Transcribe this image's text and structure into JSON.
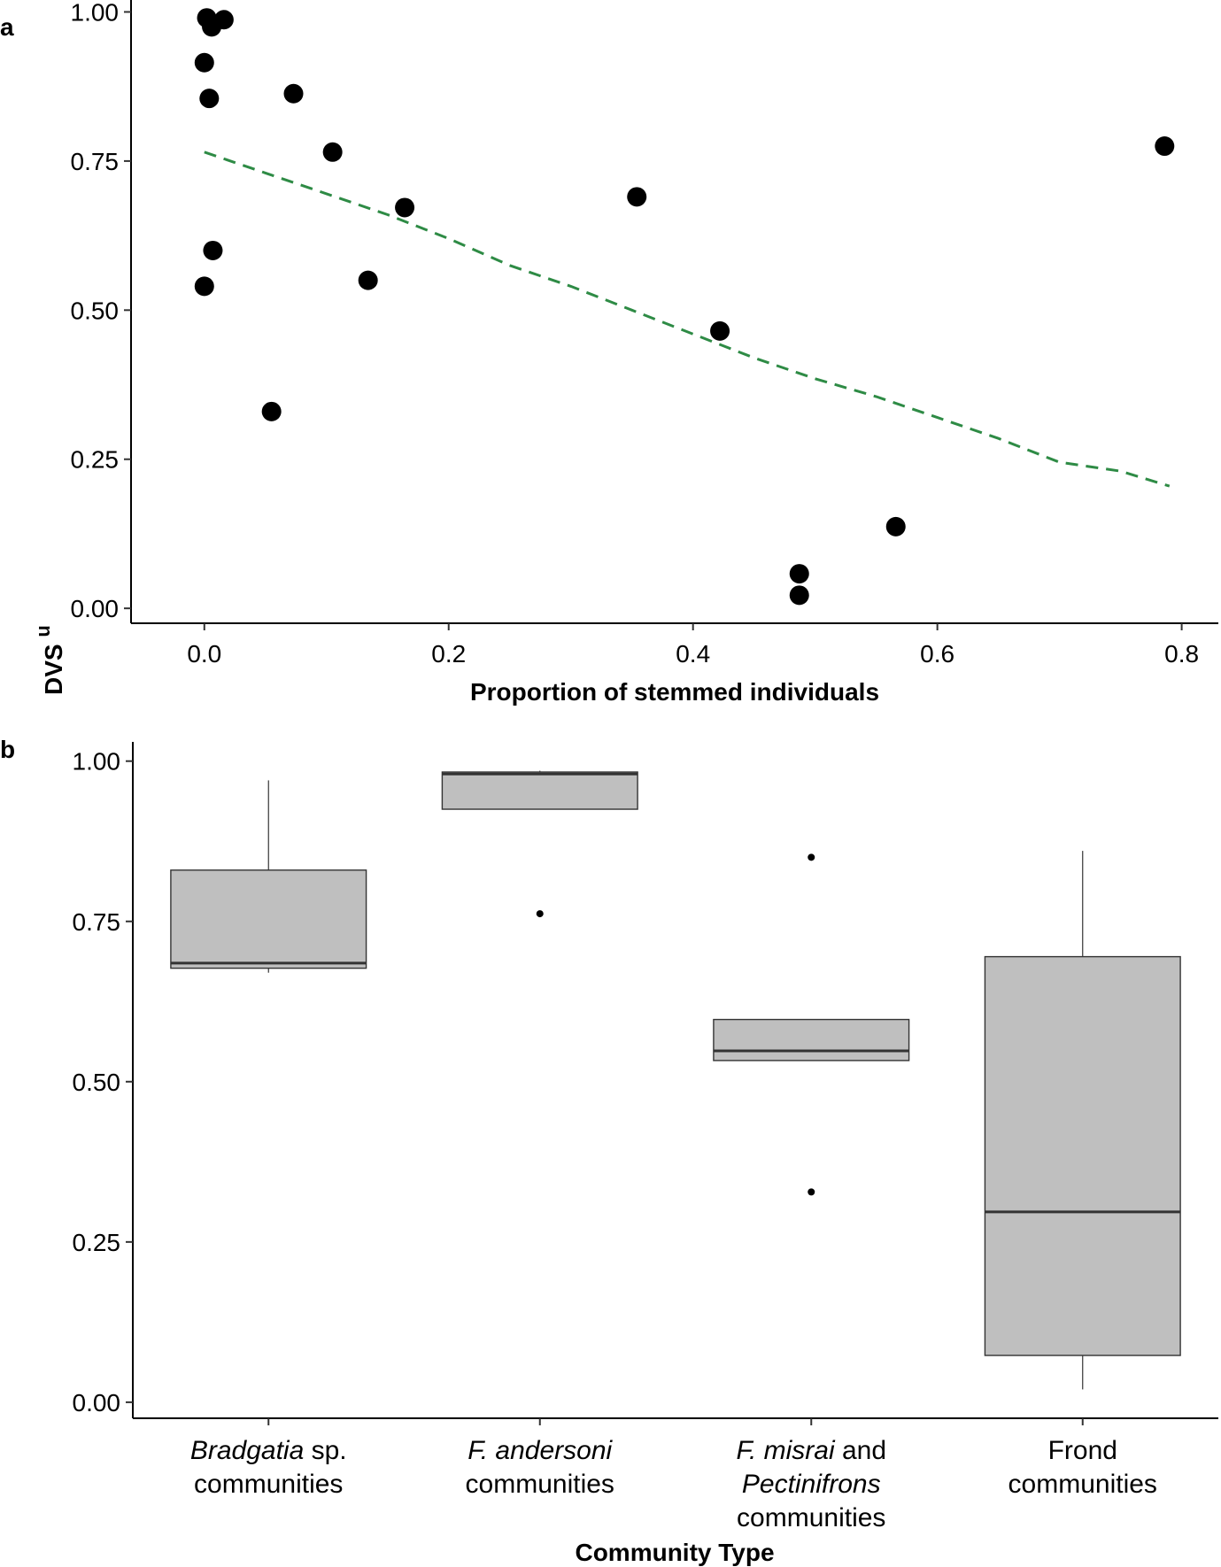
{
  "chart_data": [
    {
      "panel": "a",
      "type": "scatter",
      "ylabel": "DVS",
      "ylabel_superscript": "u",
      "xlabel": "Proportion of stemmed individuals",
      "xlim": [
        -0.06,
        0.83
      ],
      "ylim": [
        -0.025,
        1.02
      ],
      "xticks": [
        0.0,
        0.2,
        0.4,
        0.6,
        0.8
      ],
      "xtick_labels": [
        "0.0",
        "0.2",
        "0.4",
        "0.6",
        "0.8"
      ],
      "yticks": [
        0.0,
        0.25,
        0.5,
        0.75,
        1.0
      ],
      "ytick_labels": [
        "0.00",
        "0.25",
        "0.50",
        "0.75",
        "1.00"
      ],
      "grid": false,
      "point_color": "#000000",
      "points": [
        {
          "x": 0.002,
          "y": 0.99
        },
        {
          "x": 0.006,
          "y": 0.975
        },
        {
          "x": 0.016,
          "y": 0.987
        },
        {
          "x": 0.0,
          "y": 0.915
        },
        {
          "x": 0.004,
          "y": 0.855
        },
        {
          "x": 0.073,
          "y": 0.863
        },
        {
          "x": 0.105,
          "y": 0.765
        },
        {
          "x": 0.164,
          "y": 0.672
        },
        {
          "x": 0.007,
          "y": 0.6
        },
        {
          "x": 0.0,
          "y": 0.54
        },
        {
          "x": 0.134,
          "y": 0.55
        },
        {
          "x": 0.055,
          "y": 0.33
        },
        {
          "x": 0.354,
          "y": 0.69
        },
        {
          "x": 0.422,
          "y": 0.465
        },
        {
          "x": 0.487,
          "y": 0.058
        },
        {
          "x": 0.487,
          "y": 0.022
        },
        {
          "x": 0.566,
          "y": 0.137
        },
        {
          "x": 0.786,
          "y": 0.775
        }
      ],
      "trend": {
        "style": "dashed",
        "color": "#2e8b45",
        "x": [
          0.0,
          0.05,
          0.1,
          0.15,
          0.2,
          0.25,
          0.3,
          0.35,
          0.4,
          0.45,
          0.5,
          0.55,
          0.6,
          0.65,
          0.7,
          0.75,
          0.79
        ],
        "y": [
          0.765,
          0.73,
          0.695,
          0.66,
          0.62,
          0.575,
          0.54,
          0.5,
          0.46,
          0.42,
          0.385,
          0.355,
          0.32,
          0.285,
          0.245,
          0.23,
          0.205
        ]
      }
    },
    {
      "panel": "b",
      "type": "box",
      "xlabel": "Community Type",
      "ylim": [
        -0.025,
        1.03
      ],
      "yticks": [
        0.0,
        0.25,
        0.5,
        0.75,
        1.0
      ],
      "ytick_labels": [
        "0.00",
        "0.25",
        "0.50",
        "0.75",
        "1.00"
      ],
      "grid": false,
      "box_fill": "#bfbfbf",
      "categories": [
        {
          "lines": [
            [
              {
                "t": "Bradgatia",
                "i": true
              },
              {
                "t": " sp.",
                "i": false
              }
            ],
            [
              {
                "t": "communities",
                "i": false
              }
            ]
          ],
          "whisker_low": 0.67,
          "q1": 0.677,
          "median": 0.685,
          "q3": 0.83,
          "whisker_high": 0.97,
          "outliers": []
        },
        {
          "lines": [
            [
              {
                "t": "F. andersoni",
                "i": true
              }
            ],
            [
              {
                "t": "communities",
                "i": false
              }
            ]
          ],
          "whisker_low": 0.925,
          "q1": 0.925,
          "median": 0.98,
          "q3": 0.983,
          "whisker_high": 0.985,
          "outliers": [
            0.762
          ]
        },
        {
          "lines": [
            [
              {
                "t": "F. misrai",
                "i": true
              },
              {
                "t": " and",
                "i": false
              }
            ],
            [
              {
                "t": "Pectinifrons",
                "i": true
              }
            ],
            [
              {
                "t": "communities",
                "i": false
              }
            ]
          ],
          "whisker_low": 0.533,
          "q1": 0.533,
          "median": 0.548,
          "q3": 0.597,
          "whisker_high": 0.597,
          "outliers": [
            0.85,
            0.328
          ]
        },
        {
          "lines": [
            [
              {
                "t": "Frond",
                "i": false
              }
            ],
            [
              {
                "t": "communities",
                "i": false
              }
            ]
          ],
          "whisker_low": 0.02,
          "q1": 0.073,
          "median": 0.297,
          "q3": 0.695,
          "whisker_high": 0.86,
          "outliers": []
        }
      ]
    }
  ]
}
